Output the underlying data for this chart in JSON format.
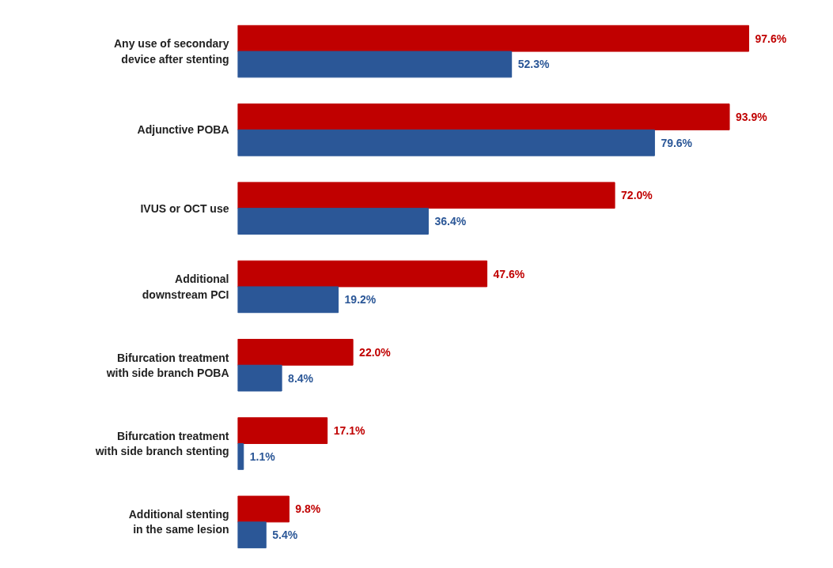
{
  "chart_data": {
    "type": "bar",
    "orientation": "horizontal",
    "categories": [
      "Any use of secondary\ndevice after stenting",
      "Adjunctive POBA",
      "IVUS or OCT use",
      "Additional\ndownstream PCI",
      "Bifurcation treatment\nwith side branch POBA",
      "Bifurcation treatment\nwith side branch stenting",
      "Additional stenting\nin the same lesion"
    ],
    "series": [
      {
        "color": "#c00000",
        "values": [
          97.6,
          93.9,
          72.0,
          47.6,
          22.0,
          17.1,
          9.8
        ],
        "value_labels": [
          "97.6%",
          "93.9%",
          "72.0%",
          "47.6%",
          "22.0%",
          "17.1%",
          "9.8%"
        ]
      },
      {
        "color": "#2b5797",
        "values": [
          52.3,
          79.6,
          36.4,
          19.2,
          8.4,
          1.1,
          5.4
        ],
        "value_labels": [
          "52.3%",
          "79.6%",
          "36.4%",
          "19.2%",
          "8.4%",
          "1.1%",
          "5.4%"
        ]
      }
    ]
  }
}
